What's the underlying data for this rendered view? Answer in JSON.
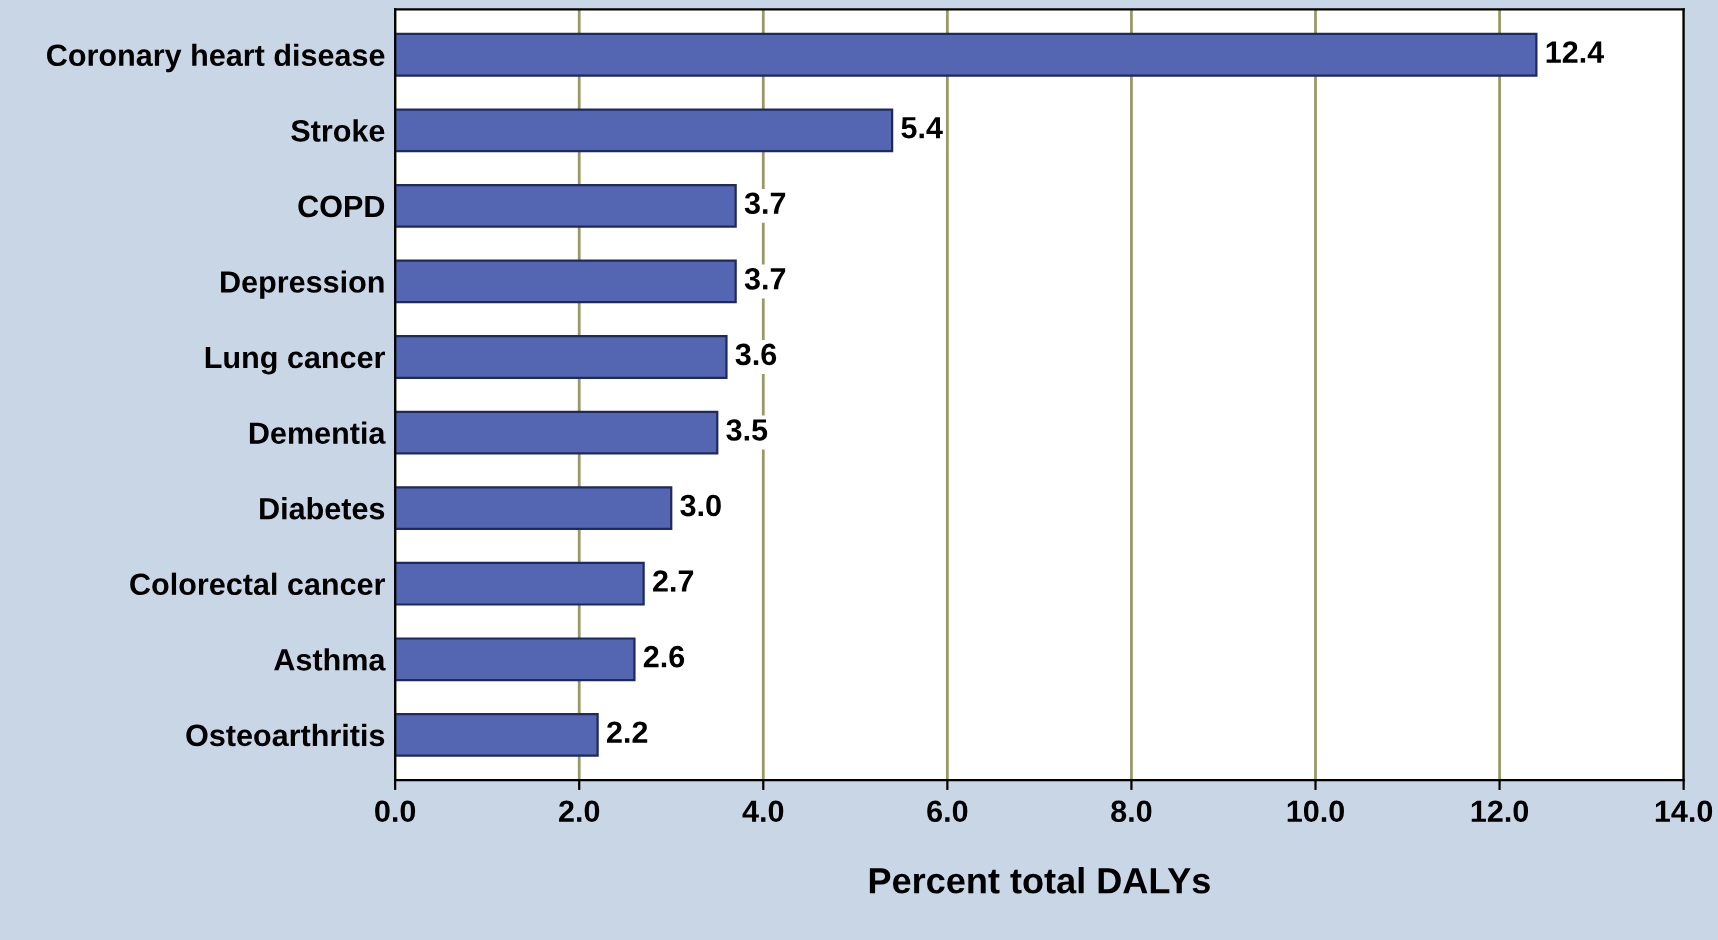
{
  "chart_data": {
    "type": "bar",
    "orientation": "horizontal",
    "xlabel": "Percent total DALYs",
    "categories": [
      "Coronary heart disease",
      "Stroke",
      "COPD",
      "Depression",
      "Lung cancer",
      "Dementia",
      "Diabetes",
      "Colorectal cancer",
      "Asthma",
      "Osteoarthritis"
    ],
    "values": [
      12.4,
      5.4,
      3.7,
      3.7,
      3.6,
      3.5,
      3.0,
      2.7,
      2.6,
      2.2
    ],
    "value_labels": [
      "12.4",
      "5.4",
      "3.7",
      "3.7",
      "3.6",
      "3.5",
      "3.0",
      "2.7",
      "2.6",
      "2.2"
    ],
    "color": "#5465b2",
    "xlim": [
      0,
      14
    ],
    "xticks": [
      {
        "value": 0,
        "label": "0.0"
      },
      {
        "value": 2,
        "label": "2.0"
      },
      {
        "value": 4,
        "label": "4.0"
      },
      {
        "value": 6,
        "label": "6.0"
      },
      {
        "value": 8,
        "label": "8.0"
      },
      {
        "value": 10,
        "label": "10.0"
      },
      {
        "value": 12,
        "label": "12.0"
      },
      {
        "value": 14,
        "label": "14.0"
      }
    ],
    "grid": "x"
  }
}
